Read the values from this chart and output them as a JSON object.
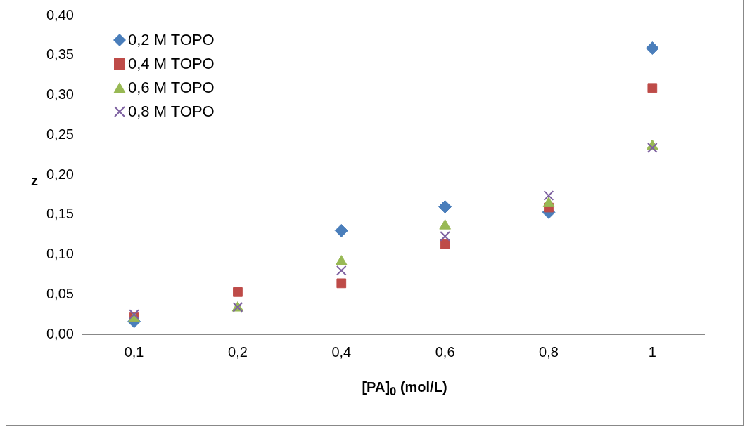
{
  "chart_data": {
    "type": "scatter",
    "xlabel": "[PA]$_{0}$ (mol/L)",
    "ylabel": "z",
    "categories": [
      "0,1",
      "0,2",
      "0,4",
      "0,6",
      "0,8",
      "1"
    ],
    "series": [
      {
        "name": "0,2 M TOPO",
        "color": "#4a7ebb",
        "marker": "diamond",
        "values": [
          0.016,
          null,
          0.13,
          0.16,
          0.153,
          0.359
        ]
      },
      {
        "name": "0,4 M TOPO",
        "color": "#be4b48",
        "marker": "square",
        "values": [
          0.022,
          0.053,
          0.064,
          0.113,
          0.159,
          0.309
        ]
      },
      {
        "name": "0,6 M TOPO",
        "color": "#98b954",
        "marker": "triangle",
        "values": [
          0.02,
          0.033,
          0.091,
          0.136,
          0.164,
          0.236
        ]
      },
      {
        "name": "0,8 M TOPO",
        "color": "#7d60a0",
        "marker": "cross",
        "values": [
          0.025,
          0.034,
          0.08,
          0.123,
          0.174,
          0.234
        ]
      }
    ],
    "ylim": [
      0,
      0.4
    ],
    "yticks": [
      {
        "value": 0,
        "label": "0,00"
      },
      {
        "value": 0.05,
        "label": "0,05"
      },
      {
        "value": 0.1,
        "label": "0,10"
      },
      {
        "value": 0.15,
        "label": "0,15"
      },
      {
        "value": 0.2,
        "label": "0,20"
      },
      {
        "value": 0.25,
        "label": "0,25"
      },
      {
        "value": 0.3,
        "label": "0,30"
      },
      {
        "value": 0.35,
        "label": "0,35"
      },
      {
        "value": 0.4,
        "label": "0,40"
      }
    ],
    "grid": false,
    "legend": "top left"
  }
}
